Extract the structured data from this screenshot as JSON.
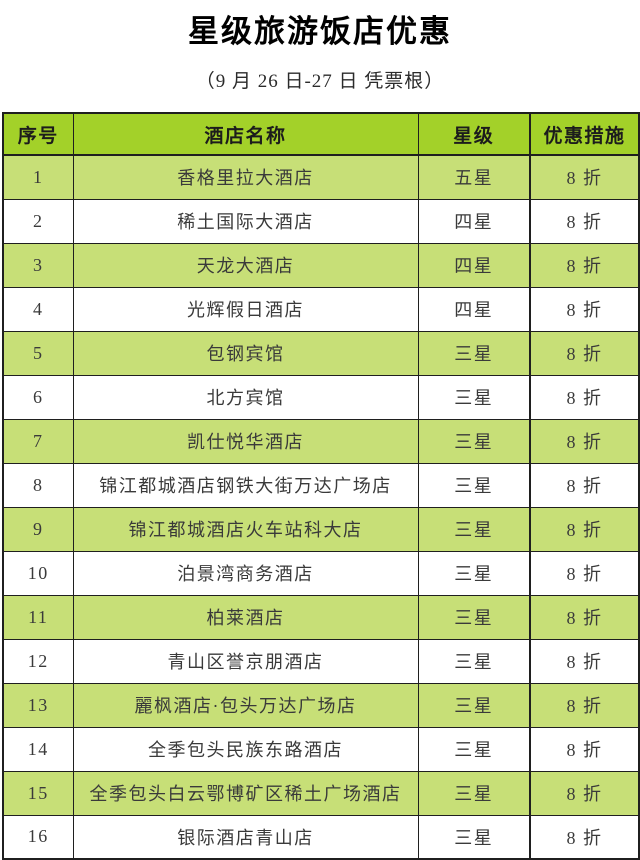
{
  "page": {
    "title": "星级旅游饭店优惠",
    "subtitle": "（9 月 26 日-27 日  凭票根）"
  },
  "colors": {
    "header_green": "#a3d129",
    "row_green": "#c7df77",
    "border_dark": "#1f1f1f",
    "text_dark": "#3a3a3a"
  },
  "table": {
    "headers": {
      "no": "序号",
      "hotel": "酒店名称",
      "stars": "星级",
      "discount": "优惠措施"
    },
    "rows": [
      {
        "no": "1",
        "hotel": "香格里拉大酒店",
        "stars": "五星",
        "discount": "8 折"
      },
      {
        "no": "2",
        "hotel": "稀土国际大酒店",
        "stars": "四星",
        "discount": "8 折"
      },
      {
        "no": "3",
        "hotel": "天龙大酒店",
        "stars": "四星",
        "discount": "8 折"
      },
      {
        "no": "4",
        "hotel": "光辉假日酒店",
        "stars": "四星",
        "discount": "8 折"
      },
      {
        "no": "5",
        "hotel": "包钢宾馆",
        "stars": "三星",
        "discount": "8 折"
      },
      {
        "no": "6",
        "hotel": "北方宾馆",
        "stars": "三星",
        "discount": "8 折"
      },
      {
        "no": "7",
        "hotel": "凯仕悦华酒店",
        "stars": "三星",
        "discount": "8 折"
      },
      {
        "no": "8",
        "hotel": "锦江都城酒店钢铁大街万达广场店",
        "stars": "三星",
        "discount": "8 折"
      },
      {
        "no": "9",
        "hotel": "锦江都城酒店火车站科大店",
        "stars": "三星",
        "discount": "8 折"
      },
      {
        "no": "10",
        "hotel": "泊景湾商务酒店",
        "stars": "三星",
        "discount": "8 折"
      },
      {
        "no": "11",
        "hotel": "柏莱酒店",
        "stars": "三星",
        "discount": "8 折"
      },
      {
        "no": "12",
        "hotel": "青山区誉京朋酒店",
        "stars": "三星",
        "discount": "8 折"
      },
      {
        "no": "13",
        "hotel": "麗枫酒店·包头万达广场店",
        "stars": "三星",
        "discount": "8 折"
      },
      {
        "no": "14",
        "hotel": "全季包头民族东路酒店",
        "stars": "三星",
        "discount": "8 折"
      },
      {
        "no": "15",
        "hotel": "全季包头白云鄂博矿区稀土广场酒店",
        "stars": "三星",
        "discount": "8 折"
      },
      {
        "no": "16",
        "hotel": "银际酒店青山店",
        "stars": "三星",
        "discount": "8 折"
      }
    ]
  }
}
